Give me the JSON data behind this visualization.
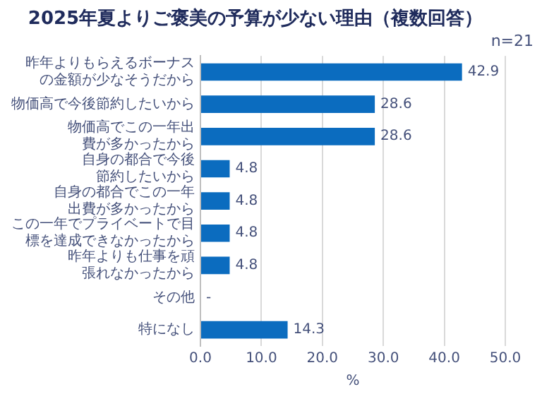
{
  "chart_data": {
    "type": "bar",
    "orientation": "horizontal",
    "title": "2025年夏よりご褒美の予算が少ない理由（複数回答）",
    "annotations": [
      "n=21"
    ],
    "xlabel": "%",
    "categories": [
      "昨年よりもらえるボーナスの金額が少なそうだから",
      "物価高で今後節約したいから",
      "物価高でこの一年出費が多かったから",
      "自身の都合で今後節約したいから",
      "自身の都合でこの一年出費が多かったから",
      "この一年でプライベートで目標を達成できなかったから",
      "昨年よりも仕事を頑張れなかったから",
      "その他",
      "特になし"
    ],
    "values": [
      42.9,
      28.6,
      28.6,
      4.8,
      4.8,
      4.8,
      4.8,
      0,
      14.3
    ],
    "value_labels": [
      "42.9",
      "28.6",
      "28.6",
      "4.8",
      "4.8",
      "4.8",
      "4.8",
      "-",
      "14.3"
    ],
    "color": "#0b6cbf",
    "xlim": [
      0,
      50
    ],
    "xticks": [
      {
        "value": 0,
        "label": "0.0"
      },
      {
        "value": 10,
        "label": "10.0"
      },
      {
        "value": 20,
        "label": "20.0"
      },
      {
        "value": 30,
        "label": "30.0"
      },
      {
        "value": 40,
        "label": "40.0"
      },
      {
        "value": 50,
        "label": "50.0"
      }
    ],
    "grid": "x",
    "legend": false
  }
}
